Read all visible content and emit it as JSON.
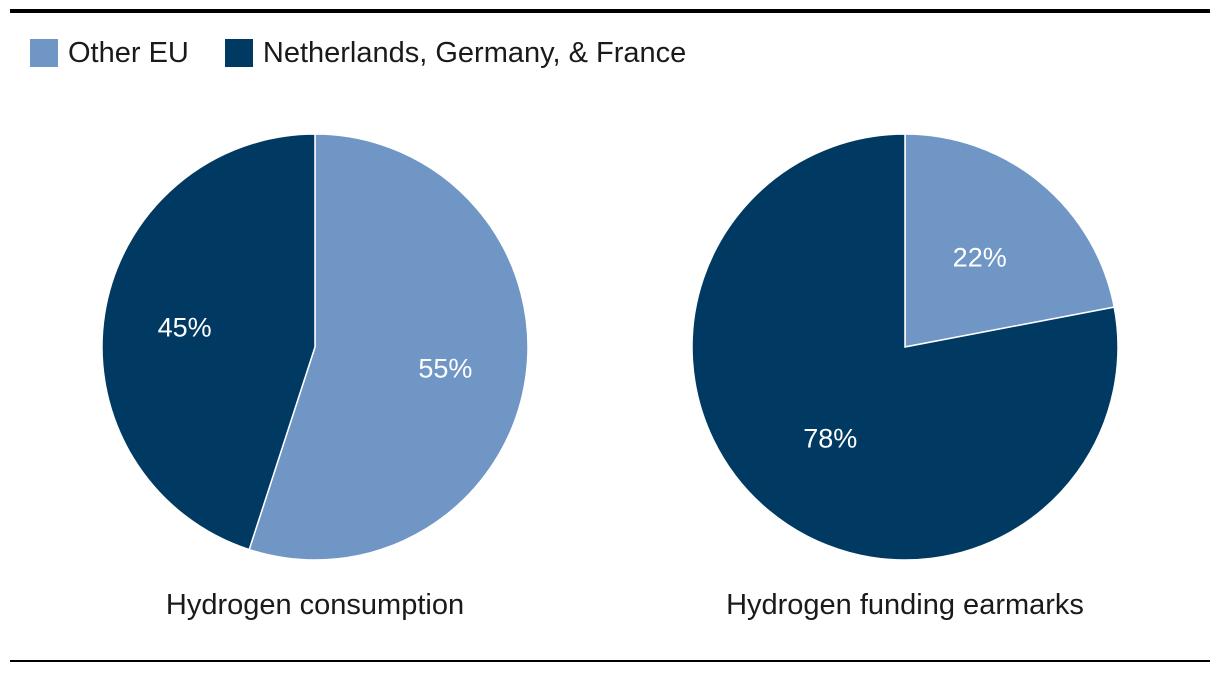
{
  "legend": [
    {
      "label": "Other EU",
      "color": "#7096c5"
    },
    {
      "label": "Netherlands, Germany, & France",
      "color": "#003a63"
    }
  ],
  "chart_data": [
    {
      "type": "pie",
      "title": "Hydrogen consumption",
      "slices": [
        {
          "name": "Other EU",
          "value": 55,
          "label": "55%",
          "color": "#7096c5"
        },
        {
          "name": "Netherlands, Germany, & France",
          "value": 45,
          "label": "45%",
          "color": "#003a63"
        }
      ]
    },
    {
      "type": "pie",
      "title": "Hydrogen funding earmarks",
      "slices": [
        {
          "name": "Other EU",
          "value": 22,
          "label": "22%",
          "color": "#7096c5"
        },
        {
          "name": "Netherlands, Germany, & France",
          "value": 78,
          "label": "78%",
          "color": "#003a63"
        }
      ]
    }
  ]
}
